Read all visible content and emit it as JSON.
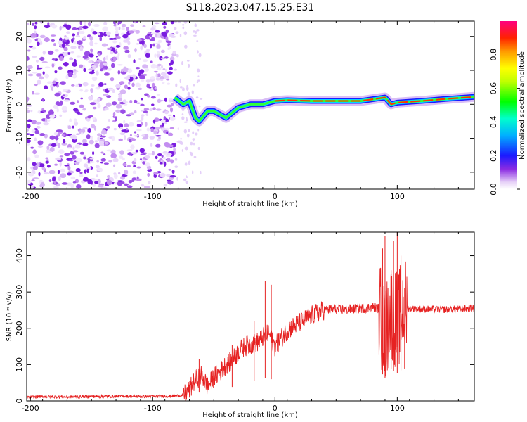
{
  "figure": {
    "title": "S118.2023.047.15.25.E31"
  },
  "chart_data": [
    {
      "type": "heatmap",
      "title": "",
      "xlabel": "Height of straight line (km)",
      "ylabel": "Frequency (Hz)",
      "xlim": [
        -203,
        163
      ],
      "ylim": [
        -25,
        24.5
      ],
      "xticks": [
        -200,
        -100,
        0,
        100
      ],
      "xtick_labels": [
        "-200",
        "-100",
        "0",
        "100"
      ],
      "yticks": [
        -20,
        -10,
        0,
        10,
        20
      ],
      "ytick_labels": [
        "-20",
        "-10",
        "0",
        "10",
        "20"
      ],
      "colorbar": {
        "label": "Normalized spectral amplitude",
        "range": [
          0,
          1
        ],
        "ticks": [
          0.0,
          0.2,
          0.4,
          0.6,
          0.8
        ],
        "tick_labels": [
          "0.0",
          "0.2",
          "0.4",
          "0.6",
          "0.8"
        ],
        "colormap": "rainbow (white, violet, blue, cyan, green, yellow, red, magenta)"
      },
      "features": {
        "noise_region_x": [
          -203,
          -82
        ],
        "sparse_region_x": [
          -82,
          -60
        ],
        "signal_ridge": {
          "x": [
            -82,
            -75,
            -70,
            -65,
            -62,
            -55,
            -50,
            -40,
            -30,
            -20,
            -10,
            0,
            10,
            30,
            50,
            70,
            80,
            90,
            95,
            100,
            120,
            140,
            163
          ],
          "frequency": [
            2,
            0,
            1,
            -4,
            -5,
            -2,
            -2,
            -4,
            -1,
            0,
            0,
            1,
            1.2,
            1,
            1,
            1,
            1.5,
            2,
            0,
            0.5,
            1,
            1.6,
            2.2
          ]
        }
      },
      "grid": false
    },
    {
      "type": "line",
      "title": "",
      "xlabel": "Height of straight line (km)",
      "ylabel": "SNR (10 * v/v)",
      "xlim": [
        -203,
        163
      ],
      "ylim": [
        0,
        465
      ],
      "xticks": [
        -200,
        -100,
        0,
        100
      ],
      "xtick_labels": [
        "-200",
        "-100",
        "0",
        "100"
      ],
      "yticks": [
        0,
        100,
        200,
        300,
        400
      ],
      "ytick_labels": [
        "0",
        "100",
        "200",
        "300",
        "400"
      ],
      "series": [
        {
          "color": "#e62222",
          "x": [
            -203,
            -190,
            -170,
            -150,
            -130,
            -110,
            -90,
            -75,
            -70,
            -65,
            -60,
            -55,
            -50,
            -45,
            -40,
            -35,
            -30,
            -25,
            -20,
            -15,
            -10,
            -5,
            0,
            10,
            20,
            30,
            40,
            50,
            60,
            70,
            80,
            85,
            90,
            95,
            100,
            105,
            110,
            120,
            140,
            163
          ],
          "values": [
            10,
            12,
            11,
            12,
            13,
            12,
            13,
            15,
            30,
            60,
            70,
            40,
            65,
            80,
            100,
            110,
            135,
            150,
            155,
            160,
            175,
            185,
            150,
            195,
            215,
            235,
            250,
            252,
            252,
            255,
            258,
            255,
            180,
            250,
            220,
            255,
            255,
            253,
            252,
            255
          ],
          "spikes": [
            {
              "x": -62,
              "value": 115
            },
            {
              "x": -35,
              "value": 155
            },
            {
              "x": -17,
              "value": 220
            },
            {
              "x": -8,
              "value": 330
            },
            {
              "x": -3,
              "value": 320
            },
            {
              "x": 88,
              "value": 420
            },
            {
              "x": 90,
              "value": 455
            },
            {
              "x": 95,
              "value": 350
            },
            {
              "x": 97,
              "value": 440
            },
            {
              "x": 100,
              "value": 470
            },
            {
              "x": 103,
              "value": 400
            },
            {
              "x": 106,
              "value": 310
            }
          ]
        }
      ],
      "grid": false
    }
  ]
}
